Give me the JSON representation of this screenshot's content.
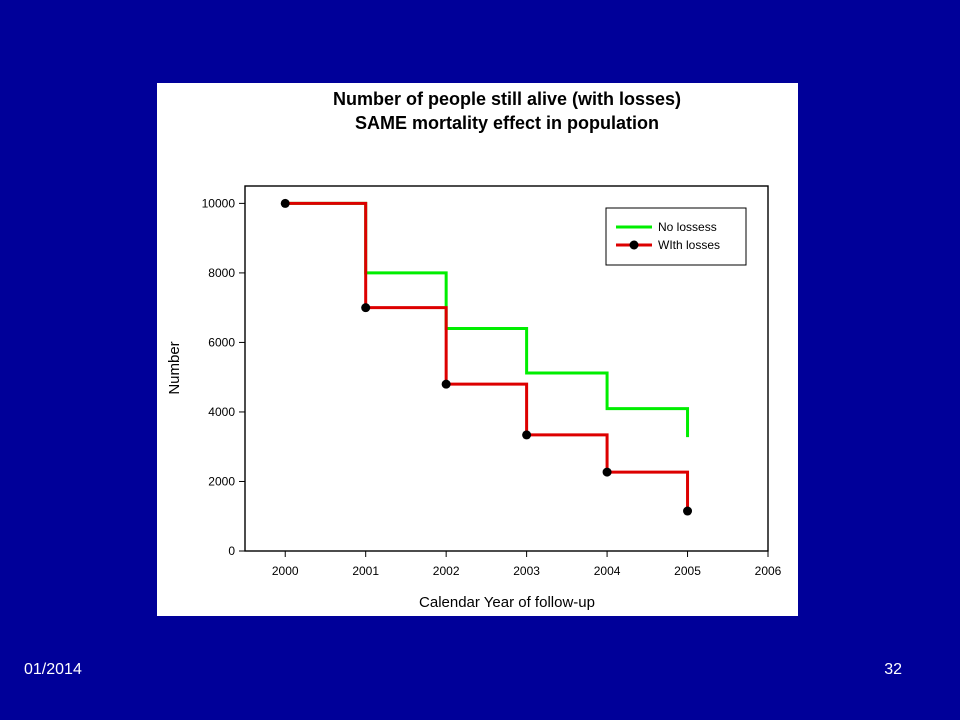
{
  "slide": {
    "background_color": "#000099",
    "footer_date": "01/2014",
    "page_number": "32"
  },
  "chart_data": {
    "type": "line",
    "title_lines": [
      "Number of people still alive (with losses)",
      "SAME mortality effect in population"
    ],
    "xlabel": "Calendar Year of follow-up",
    "ylabel": "Number",
    "xlim": [
      1999.5,
      2006
    ],
    "ylim": [
      0,
      10500
    ],
    "xticks": [
      2000,
      2001,
      2002,
      2003,
      2004,
      2005,
      2006
    ],
    "yticks": [
      0,
      2000,
      4000,
      6000,
      8000,
      10000
    ],
    "grid": false,
    "legend_position": "top-right",
    "series": [
      {
        "name": "No lossess",
        "color": "#00ee00",
        "step": true,
        "markers": false,
        "x": [
          2000,
          2001,
          2002,
          2003,
          2004,
          2005
        ],
        "y": [
          10000,
          8000,
          6400,
          5120,
          4096,
          3277
        ]
      },
      {
        "name": "WIth losses",
        "color": "#dd0000",
        "step": true,
        "markers": true,
        "marker_color": "#000000",
        "x": [
          2000,
          2001,
          2002,
          2003,
          2004,
          2005
        ],
        "y": [
          10000,
          7000,
          4800,
          3340,
          2270,
          1150
        ]
      }
    ]
  }
}
